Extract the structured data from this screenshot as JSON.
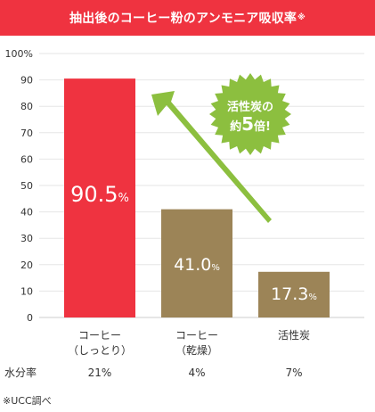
{
  "header": {
    "title": "抽出後のコーヒー粉のアンモニア吸収率",
    "mark": "※"
  },
  "colors": {
    "header_bg": "#ef3340",
    "bar_primary": "#ef3340",
    "bar_secondary": "#9c8457",
    "arrow": "#8cbf3f",
    "badge": "#8cbf3f",
    "grid": "#e6e6e6"
  },
  "chart_data": {
    "type": "bar",
    "categories": [
      [
        "コーヒー",
        "（しっとり）"
      ],
      [
        "コーヒー",
        "（乾燥）"
      ],
      [
        "活性炭"
      ]
    ],
    "values": [
      90.5,
      41.0,
      17.3
    ],
    "value_labels": [
      {
        "num": "90.5",
        "unit": "%"
      },
      {
        "num": "41.0",
        "unit": "%"
      },
      {
        "num": "17.3",
        "unit": "%"
      }
    ],
    "bar_colors": [
      "#ef3340",
      "#9c8457",
      "#9c8457"
    ],
    "ylim": [
      0,
      100
    ],
    "yticks": [
      0,
      10,
      20,
      30,
      40,
      50,
      60,
      70,
      80,
      90,
      100
    ],
    "ytick_labels": [
      "0",
      "10",
      "20",
      "30",
      "40",
      "50",
      "60",
      "70",
      "80",
      "90",
      "100%"
    ],
    "grid": true,
    "annotation": {
      "line1": "活性炭の",
      "line2_prefix": "約",
      "line2_num": "5",
      "line2_suffix": "倍!"
    }
  },
  "moisture": {
    "label": "水分率",
    "values": [
      "21%",
      "4%",
      "7%"
    ]
  },
  "footnote": "※UCC調べ"
}
